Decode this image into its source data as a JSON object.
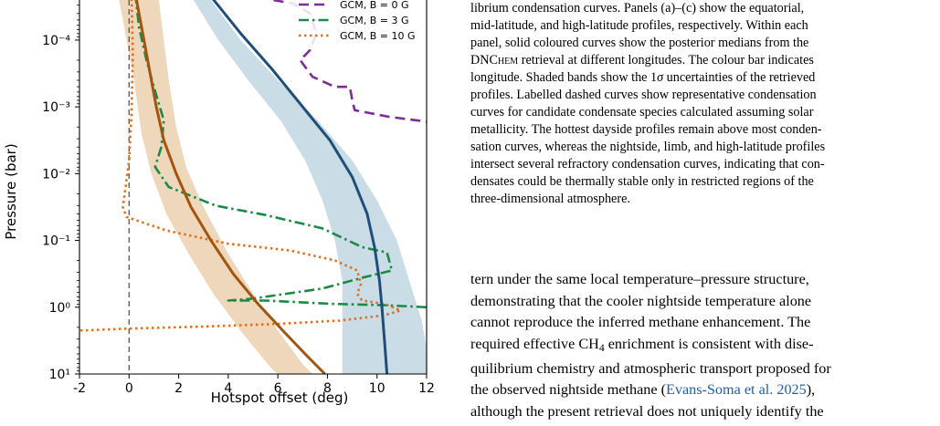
{
  "chart_data": {
    "type": "line",
    "xlabel": "Hotspot offset (deg)",
    "ylabel": "Pressure (bar)",
    "xlim": [
      -2,
      12
    ],
    "ylim_log10": [
      -4.6,
      1
    ],
    "y_scale": "log",
    "y_inverted": true,
    "x_ticks": [
      "-2",
      "0",
      "2",
      "4",
      "6",
      "8",
      "10",
      "12"
    ],
    "x_tick_values": [
      -2,
      0,
      2,
      4,
      6,
      8,
      10,
      12
    ],
    "y_tick_exponents": [
      -4,
      -3,
      -2,
      -1,
      0,
      1
    ],
    "y_ticks": [
      "10⁻⁴",
      "10⁻³",
      "10⁻²",
      "10⁻¹",
      "10⁰",
      "10¹"
    ],
    "reference_line_x": 0,
    "legend": {
      "placement": "top-right",
      "entries": [
        {
          "label": "GCM, B = 0 G",
          "color": "#7b2d9b",
          "style": "dashed"
        },
        {
          "label": "GCM, B = 3 G",
          "color": "#1a8a45",
          "style": "dashdot"
        },
        {
          "label": "GCM, B = 10 G",
          "color": "#e07020",
          "style": "dotted"
        }
      ]
    },
    "bands": [
      {
        "color": "#e8c9a3",
        "upper": [
          [
            1.2,
            -4.6
          ],
          [
            1.4,
            -4.0
          ],
          [
            1.6,
            -3.4
          ],
          [
            1.9,
            -2.7
          ],
          [
            2.3,
            -2.1
          ],
          [
            3.0,
            -1.5
          ],
          [
            4.0,
            -0.8
          ],
          [
            5.0,
            -0.2
          ],
          [
            6.0,
            0.35
          ],
          [
            7.0,
            0.85
          ],
          [
            7.4,
            1.0
          ]
        ],
        "lower": [
          [
            -0.4,
            -4.6
          ],
          [
            -0.1,
            -4.0
          ],
          [
            0.2,
            -3.4
          ],
          [
            0.5,
            -2.6
          ],
          [
            0.9,
            -2.0
          ],
          [
            1.5,
            -1.4
          ],
          [
            2.4,
            -0.8
          ],
          [
            3.4,
            -0.2
          ],
          [
            4.6,
            0.4
          ],
          [
            5.7,
            0.9
          ],
          [
            6.0,
            1.0
          ]
        ]
      },
      {
        "color": "#b8d0de",
        "upper": [
          [
            3.3,
            -4.6
          ],
          [
            4.5,
            -4.0
          ],
          [
            6.0,
            -3.4
          ],
          [
            7.6,
            -2.8
          ],
          [
            9.0,
            -2.2
          ],
          [
            10.0,
            -1.6
          ],
          [
            10.8,
            -1.0
          ],
          [
            11.3,
            -0.4
          ],
          [
            11.8,
            0.2
          ],
          [
            12.0,
            0.6
          ],
          [
            12.0,
            1.0
          ]
        ],
        "lower": [
          [
            2.6,
            -4.6
          ],
          [
            3.6,
            -4.0
          ],
          [
            4.8,
            -3.4
          ],
          [
            6.1,
            -2.8
          ],
          [
            7.1,
            -2.2
          ],
          [
            7.8,
            -1.6
          ],
          [
            8.3,
            -1.0
          ],
          [
            8.6,
            -0.4
          ],
          [
            8.6,
            0.2
          ],
          [
            8.6,
            0.6
          ],
          [
            8.6,
            1.0
          ]
        ]
      }
    ],
    "series": [
      {
        "color": "#7b2d9b",
        "style": "dashed",
        "points": [
          [
            4.7,
            -4.8
          ],
          [
            5.8,
            -4.6
          ],
          [
            6.6,
            -4.55
          ],
          [
            7.3,
            -4.4
          ],
          [
            7.55,
            -4.1
          ],
          [
            7.3,
            -3.85
          ],
          [
            6.9,
            -3.7
          ],
          [
            7.4,
            -3.45
          ],
          [
            8.3,
            -3.3
          ],
          [
            8.9,
            -3.3
          ],
          [
            9.0,
            -3.1
          ],
          [
            9.1,
            -2.95
          ],
          [
            10.5,
            -2.85
          ],
          [
            12,
            -2.78
          ]
        ]
      },
      {
        "color": "#1a8a45",
        "style": "dashdot",
        "points": [
          [
            0.25,
            -4.7
          ],
          [
            0.4,
            -4.2
          ],
          [
            0.7,
            -3.7
          ],
          [
            1.0,
            -3.3
          ],
          [
            1.4,
            -2.8
          ],
          [
            1.3,
            -2.4
          ],
          [
            1.05,
            -2.1
          ],
          [
            1.6,
            -1.8
          ],
          [
            3.5,
            -1.52
          ],
          [
            5.5,
            -1.38
          ],
          [
            7.8,
            -1.18
          ],
          [
            9.4,
            -0.9
          ],
          [
            10.4,
            -0.82
          ],
          [
            10.6,
            -0.55
          ],
          [
            9.5,
            -0.45
          ],
          [
            7.8,
            -0.28
          ],
          [
            5.0,
            -0.13
          ],
          [
            4.0,
            -0.1
          ],
          [
            5.5,
            -0.1
          ],
          [
            8.2,
            -0.05
          ],
          [
            10.3,
            -0.03
          ],
          [
            12,
            0.0
          ]
        ]
      },
      {
        "color": "#e07020",
        "style": "dotted",
        "points": [
          [
            0.1,
            -4.7
          ],
          [
            0.15,
            -3.8
          ],
          [
            0.1,
            -2.9
          ],
          [
            0.0,
            -2.2
          ],
          [
            -0.25,
            -1.5
          ],
          [
            -0.1,
            -1.35
          ],
          [
            1.5,
            -1.15
          ],
          [
            4.0,
            -0.95
          ],
          [
            6.5,
            -0.85
          ],
          [
            8.3,
            -0.7
          ],
          [
            9.2,
            -0.55
          ],
          [
            9.35,
            -0.35
          ],
          [
            9.2,
            -0.2
          ],
          [
            9.4,
            -0.1
          ],
          [
            10.3,
            -0.05
          ],
          [
            10.95,
            0.05
          ],
          [
            10.3,
            0.12
          ],
          [
            8.5,
            0.2
          ],
          [
            6.0,
            0.25
          ],
          [
            3.0,
            0.29
          ],
          [
            0.0,
            0.32
          ],
          [
            -2.0,
            0.35
          ]
        ]
      },
      {
        "color": "#a05510",
        "style": "solid",
        "width": 3,
        "points": [
          [
            0.2,
            -4.8
          ],
          [
            0.5,
            -4.2
          ],
          [
            0.8,
            -3.6
          ],
          [
            1.1,
            -3.0
          ],
          [
            1.4,
            -2.5
          ],
          [
            1.9,
            -2.0
          ],
          [
            2.5,
            -1.5
          ],
          [
            3.3,
            -1.0
          ],
          [
            4.2,
            -0.5
          ],
          [
            5.2,
            -0.05
          ],
          [
            6.2,
            0.35
          ],
          [
            7.1,
            0.7
          ],
          [
            7.9,
            1.0
          ]
        ]
      },
      {
        "color": "#1f4e79",
        "style": "solid",
        "width": 3,
        "points": [
          [
            3.2,
            -4.7
          ],
          [
            4.5,
            -4.1
          ],
          [
            5.8,
            -3.55
          ],
          [
            7.0,
            -3.0
          ],
          [
            8.1,
            -2.5
          ],
          [
            9.0,
            -1.95
          ],
          [
            9.6,
            -1.4
          ],
          [
            9.9,
            -0.9
          ],
          [
            10.1,
            -0.4
          ],
          [
            10.2,
            0.0
          ],
          [
            10.3,
            0.5
          ],
          [
            10.4,
            1.0
          ]
        ]
      }
    ]
  },
  "caption": {
    "line_1": "librium condensation curves. Panels (a)–(c) show the equatorial,",
    "line_2": "mid-latitude, and high-latitude profiles, respectively. Within each",
    "line_3": "panel, solid coloured curves show the posterior medians from the",
    "dnchem_sc": "DNChem",
    "line_4_rest": " retrieval at different longitudes. The colour bar indicates",
    "line_5_a": "longitude. Shaded bands show the 1",
    "sigma": "σ",
    "line_5_b": " uncertainties of the retrieved",
    "line_6": "profiles. Labelled dashed curves show representative condensation",
    "line_7": "curves for candidate condensate species calculated assuming solar",
    "line_8": "metallicity. The hottest dayside profiles remain above most conden-",
    "line_9": "sation curves, whereas the nightside, limb, and high-latitude profiles",
    "line_10": "intersect several refractory condensation curves, indicating that con-",
    "line_11": "densates could be thermally stable only in restricted regions of the",
    "line_12": "three-dimensional atmosphere."
  },
  "body": {
    "line_1": "tern under the same local temperature–pressure structure,",
    "line_2": "demonstrating that the cooler nightside temperature alone",
    "line_3": "cannot reproduce the inferred methane enhancement. The",
    "line_4_a": "required effective CH",
    "line_4_sub": "4",
    "line_4_b": " enrichment is consistent with dise-",
    "line_5": "quilibrium chemistry and atmospheric transport proposed for",
    "line_6_a": "the observed nightside methane (",
    "citation": "Evans-Soma et al. 2025",
    "line_6_b": "),",
    "line_7": "although the present retrieval does not uniquely identify the"
  }
}
